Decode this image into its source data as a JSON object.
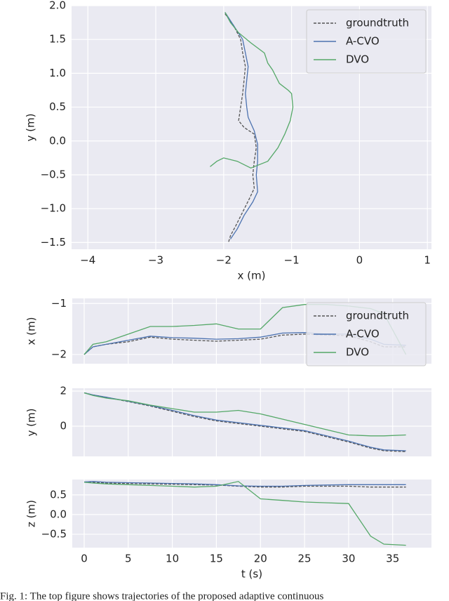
{
  "chart_data": [
    {
      "type": "line",
      "xlabel": "x (m)",
      "ylabel": "y (m)",
      "xlim": [
        -4.24,
        1.06
      ],
      "ylim": [
        -1.6,
        2.0
      ],
      "xticks": [
        {
          "value": -4,
          "label": "−4"
        },
        {
          "value": -3,
          "label": "−3"
        },
        {
          "value": -2,
          "label": "−2"
        },
        {
          "value": -1,
          "label": "−1"
        },
        0,
        1
      ],
      "yticks": [
        {
          "value": -1.5,
          "label": "−1.5"
        },
        {
          "value": -1.0,
          "label": "−1.0"
        },
        {
          "value": -0.5,
          "label": "−0.5"
        },
        {
          "value": 0,
          "label": "0.0"
        },
        {
          "value": 0.5,
          "label": "0.5"
        },
        {
          "value": 1.0,
          "label": "1.0"
        },
        {
          "value": 1.5,
          "label": "1.5"
        },
        {
          "value": 2.0,
          "label": "2.0"
        }
      ],
      "grid": true,
      "legend": "upper right",
      "series": [
        {
          "name": "groundtruth",
          "color": "#555555",
          "dashed": true,
          "x": [
            -1.98,
            -1.85,
            -1.75,
            -1.72,
            -1.68,
            -1.7,
            -1.72,
            -1.75,
            -1.78,
            -1.7,
            -1.55,
            -1.52,
            -1.55,
            -1.57,
            -1.55,
            -1.62,
            -1.72,
            -1.82,
            -1.9,
            -1.93
          ],
          "values": [
            1.88,
            1.7,
            1.5,
            1.3,
            1.1,
            0.9,
            0.7,
            0.5,
            0.3,
            0.2,
            0.1,
            -0.1,
            -0.3,
            -0.5,
            -0.7,
            -0.85,
            -1.05,
            -1.25,
            -1.4,
            -1.5
          ]
        },
        {
          "name": "A-CVO",
          "color": "#4c72b0",
          "x": [
            -1.98,
            -1.85,
            -1.72,
            -1.68,
            -1.64,
            -1.66,
            -1.68,
            -1.66,
            -1.64,
            -1.55,
            -1.5,
            -1.5,
            -1.52,
            -1.5,
            -1.57,
            -1.7,
            -1.8,
            -1.9
          ],
          "values": [
            1.9,
            1.7,
            1.5,
            1.3,
            1.1,
            0.9,
            0.7,
            0.5,
            0.35,
            0.15,
            -0.05,
            -0.3,
            -0.5,
            -0.75,
            -0.9,
            -1.1,
            -1.3,
            -1.45
          ]
        },
        {
          "name": "DVO",
          "color": "#55a868",
          "x": [
            -1.98,
            -1.9,
            -1.78,
            -1.6,
            -1.4,
            -1.35,
            -1.28,
            -1.18,
            -1.05,
            -1.0,
            -0.98,
            -1.02,
            -1.1,
            -1.2,
            -1.35,
            -1.6,
            -1.8,
            -2.0,
            -2.1,
            -2.2
          ],
          "values": [
            1.9,
            1.75,
            1.6,
            1.45,
            1.3,
            1.15,
            1.05,
            0.85,
            0.75,
            0.7,
            0.5,
            0.3,
            0.1,
            -0.1,
            -0.3,
            -0.4,
            -0.3,
            -0.25,
            -0.3,
            -0.38
          ]
        }
      ]
    },
    {
      "type": "line",
      "ylabel": "x (m)",
      "sharex": true,
      "xlim": [
        -1.35,
        39.4
      ],
      "ylim": [
        -2.18,
        -0.9
      ],
      "yticks": [
        {
          "value": -2,
          "label": "−2"
        },
        {
          "value": -1,
          "label": "−1"
        }
      ],
      "grid": true,
      "legend": "upper right",
      "x": [
        0,
        1,
        2.5,
        5,
        7.5,
        10,
        12.5,
        15,
        17.5,
        20,
        22.5,
        25,
        27.5,
        30,
        32.5,
        34,
        36.5
      ],
      "series": [
        {
          "name": "groundtruth",
          "color": "#555555",
          "dashed": true,
          "values": [
            -2.0,
            -1.85,
            -1.8,
            -1.75,
            -1.66,
            -1.7,
            -1.72,
            -1.74,
            -1.72,
            -1.7,
            -1.62,
            -1.6,
            -1.62,
            -1.63,
            -1.75,
            -1.85,
            -1.85
          ]
        },
        {
          "name": "A-CVO",
          "color": "#4c72b0",
          "values": [
            -2.0,
            -1.85,
            -1.8,
            -1.72,
            -1.64,
            -1.67,
            -1.68,
            -1.7,
            -1.69,
            -1.66,
            -1.58,
            -1.57,
            -1.6,
            -1.6,
            -1.7,
            -1.8,
            -1.82
          ]
        },
        {
          "name": "DVO",
          "color": "#55a868",
          "values": [
            -2.0,
            -1.8,
            -1.75,
            -1.6,
            -1.45,
            -1.45,
            -1.43,
            -1.4,
            -1.5,
            -1.5,
            -1.08,
            -1.02,
            -1.02,
            -1.05,
            -1.1,
            -1.2,
            -2.0
          ]
        }
      ]
    },
    {
      "type": "line",
      "ylabel": "y (m)",
      "sharex": true,
      "xlim": [
        -1.35,
        39.4
      ],
      "ylim": [
        -1.72,
        2.16
      ],
      "yticks": [
        0,
        2
      ],
      "grid": true,
      "x": [
        0,
        1,
        2.5,
        5,
        7.5,
        10,
        12.5,
        15,
        17.5,
        20,
        22.5,
        25,
        27.5,
        30,
        32.5,
        34,
        36.5
      ],
      "series": [
        {
          "name": "groundtruth",
          "color": "#555555",
          "dashed": true,
          "values": [
            1.9,
            1.78,
            1.65,
            1.4,
            1.15,
            0.85,
            0.55,
            0.3,
            0.15,
            0.0,
            -0.15,
            -0.3,
            -0.6,
            -0.9,
            -1.25,
            -1.4,
            -1.45
          ]
        },
        {
          "name": "A-CVO",
          "color": "#4c72b0",
          "values": [
            1.9,
            1.78,
            1.65,
            1.42,
            1.18,
            0.9,
            0.6,
            0.35,
            0.2,
            0.05,
            -0.1,
            -0.25,
            -0.55,
            -0.85,
            -1.2,
            -1.35,
            -1.4
          ]
        },
        {
          "name": "DVO",
          "color": "#55a868",
          "values": [
            1.9,
            1.75,
            1.6,
            1.45,
            1.2,
            1.0,
            0.8,
            0.8,
            0.9,
            0.7,
            0.4,
            0.1,
            -0.2,
            -0.5,
            -0.55,
            -0.55,
            -0.5
          ]
        }
      ]
    },
    {
      "type": "line",
      "xlabel": "t (s)",
      "ylabel": "z (m)",
      "xlim": [
        -1.35,
        39.4
      ],
      "ylim": [
        -0.84,
        0.89
      ],
      "xticks": [
        0,
        5,
        10,
        15,
        20,
        25,
        30,
        35
      ],
      "yticks": [
        {
          "value": -0.5,
          "label": "−0.5"
        },
        {
          "value": 0,
          "label": "0.0"
        },
        {
          "value": 0.5,
          "label": "0.5"
        }
      ],
      "grid": true,
      "x": [
        0,
        1,
        2.5,
        5,
        7.5,
        10,
        12.5,
        15,
        17.5,
        20,
        22.5,
        25,
        27.5,
        30,
        32.5,
        34,
        36.5
      ],
      "series": [
        {
          "name": "groundtruth",
          "color": "#555555",
          "dashed": true,
          "values": [
            0.82,
            0.82,
            0.8,
            0.79,
            0.78,
            0.77,
            0.76,
            0.75,
            0.72,
            0.7,
            0.7,
            0.72,
            0.72,
            0.72,
            0.7,
            0.7,
            0.7
          ]
        },
        {
          "name": "A-CVO",
          "color": "#4c72b0",
          "values": [
            0.83,
            0.84,
            0.82,
            0.81,
            0.8,
            0.79,
            0.78,
            0.76,
            0.73,
            0.72,
            0.72,
            0.74,
            0.75,
            0.76,
            0.76,
            0.76,
            0.76
          ]
        },
        {
          "name": "DVO",
          "color": "#55a868",
          "values": [
            0.82,
            0.8,
            0.78,
            0.76,
            0.74,
            0.72,
            0.7,
            0.72,
            0.84,
            0.4,
            0.36,
            0.32,
            0.3,
            0.28,
            -0.55,
            -0.75,
            -0.78
          ]
        }
      ]
    }
  ],
  "caption": "Fig. 1: The top figure shows trajectories of the proposed adaptive continuous"
}
